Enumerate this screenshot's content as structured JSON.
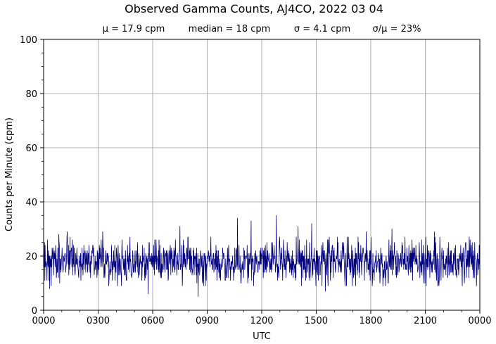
{
  "chart_data": {
    "type": "line",
    "title": "Observed Gamma Counts, AJ4CO, 2022 03 04",
    "subtitle_stats": [
      "μ = 17.9 cpm",
      "median = 18 cpm",
      "σ = 4.1 cpm",
      "σ/μ = 23%"
    ],
    "xlabel": "UTC",
    "ylabel": "Counts per Minute (cpm)",
    "xlim": [
      "0000",
      "0000"
    ],
    "ylim": [
      0,
      100
    ],
    "x_ticks": [
      "0000",
      "0300",
      "0600",
      "0900",
      "1200",
      "1500",
      "1800",
      "2100",
      "0000"
    ],
    "y_ticks": [
      "0",
      "20",
      "40",
      "60",
      "80",
      "100"
    ],
    "grid": true,
    "series": [
      {
        "color": "#000080",
        "mean_cpm": 17.9,
        "median_cpm": 18,
        "std_cpm": 4.1,
        "sampling": "one value per minute, 0000 to 0000 UTC",
        "notable_values": [
          {
            "time": "0020",
            "value": 8
          },
          {
            "time": "0050",
            "value": 28
          },
          {
            "time": "0118",
            "value": 29
          },
          {
            "time": "0315",
            "value": 29
          },
          {
            "time": "0545",
            "value": 6
          },
          {
            "time": "0730",
            "value": 31
          },
          {
            "time": "0830",
            "value": 5
          },
          {
            "time": "1040",
            "value": 34
          },
          {
            "time": "1125",
            "value": 33
          },
          {
            "time": "1248",
            "value": 35
          },
          {
            "time": "1400",
            "value": 31
          },
          {
            "time": "1445",
            "value": 32
          },
          {
            "time": "1530",
            "value": 7
          },
          {
            "time": "1745",
            "value": 29
          },
          {
            "time": "1910",
            "value": 30
          },
          {
            "time": "2130",
            "value": 29
          },
          {
            "time": "2145",
            "value": 9
          }
        ]
      }
    ]
  }
}
